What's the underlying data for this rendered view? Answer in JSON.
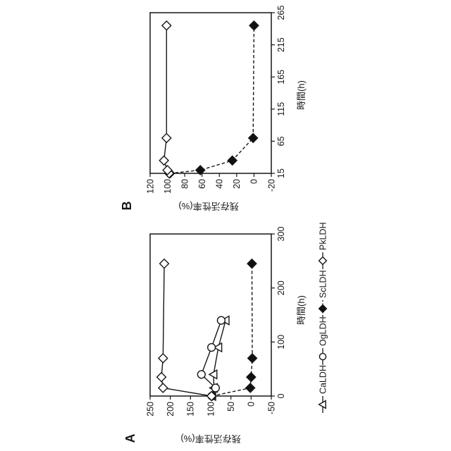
{
  "figure": {
    "panel_a_label": "A",
    "panel_b_label": "B",
    "xlabel": "時間(h)",
    "ylabel": "残存活性率(%)"
  },
  "legend": [
    {
      "name": "CaLDH",
      "marker": "triangle-open",
      "line": "solid"
    },
    {
      "name": "OgLDH",
      "marker": "circle-open",
      "line": "solid"
    },
    {
      "name": "ScLDH",
      "marker": "diamond-filled",
      "line": "dashed"
    },
    {
      "name": "PkLDH",
      "marker": "diamond-open",
      "line": "solid"
    }
  ],
  "colors": {
    "line": "#161616",
    "marker_fill_open": "#ffffff",
    "marker_fill_solid": "#111111",
    "background": "#ffffff"
  },
  "chart_data": [
    {
      "type": "line",
      "panel": "A",
      "title": "",
      "xlabel": "時間(h)",
      "ylabel": "残存活性率(%)",
      "xlim": [
        0,
        300
      ],
      "ylim": [
        -50,
        250
      ],
      "xticks": [
        0,
        100,
        200,
        300
      ],
      "yticks": [
        250,
        200,
        150,
        100,
        50,
        0,
        -50
      ],
      "grid": false,
      "series": [
        {
          "name": "CaLDH",
          "marker": "triangle-open",
          "line": "solid",
          "points": [
            [
              0,
              96
            ],
            [
              15,
              92
            ],
            [
              40,
              93
            ],
            [
              90,
              81
            ],
            [
              140,
              63
            ]
          ]
        },
        {
          "name": "OgLDH",
          "marker": "circle-open",
          "line": "solid",
          "points": [
            [
              0,
              97
            ],
            [
              15,
              88
            ],
            [
              40,
              123
            ],
            [
              90,
              98
            ],
            [
              140,
              74
            ]
          ]
        },
        {
          "name": "ScLDH",
          "marker": "diamond-filled",
          "line": "dashed",
          "points": [
            [
              0,
              97
            ],
            [
              15,
              2
            ],
            [
              35,
              0
            ],
            [
              70,
              -3
            ],
            [
              245,
              -2
            ]
          ]
        },
        {
          "name": "PkLDH",
          "marker": "diamond-open",
          "line": "solid",
          "points": [
            [
              0,
              98
            ],
            [
              15,
              218
            ],
            [
              35,
              222
            ],
            [
              70,
              218
            ],
            [
              245,
              215
            ]
          ]
        }
      ]
    },
    {
      "type": "line",
      "panel": "B",
      "title": "",
      "xlabel": "時間(h)",
      "ylabel": "残存活性率(%)",
      "xlim": [
        15,
        265
      ],
      "ylim": [
        -20,
        120
      ],
      "xticks": [
        15,
        65,
        115,
        165,
        215,
        265
      ],
      "yticks": [
        120,
        100,
        80,
        60,
        40,
        20,
        0,
        -20
      ],
      "grid": false,
      "series": [
        {
          "name": "ScLDH",
          "marker": "diamond-filled",
          "line": "dashed",
          "points": [
            [
              15,
              97
            ],
            [
              20,
              62
            ],
            [
              35,
              25
            ],
            [
              70,
              1
            ],
            [
              245,
              0
            ]
          ]
        },
        {
          "name": "PkLDH",
          "marker": "diamond-open",
          "line": "solid",
          "points": [
            [
              15,
              98
            ],
            [
              20,
              100
            ],
            [
              35,
              104
            ],
            [
              70,
              101
            ],
            [
              245,
              101
            ]
          ]
        }
      ]
    }
  ]
}
